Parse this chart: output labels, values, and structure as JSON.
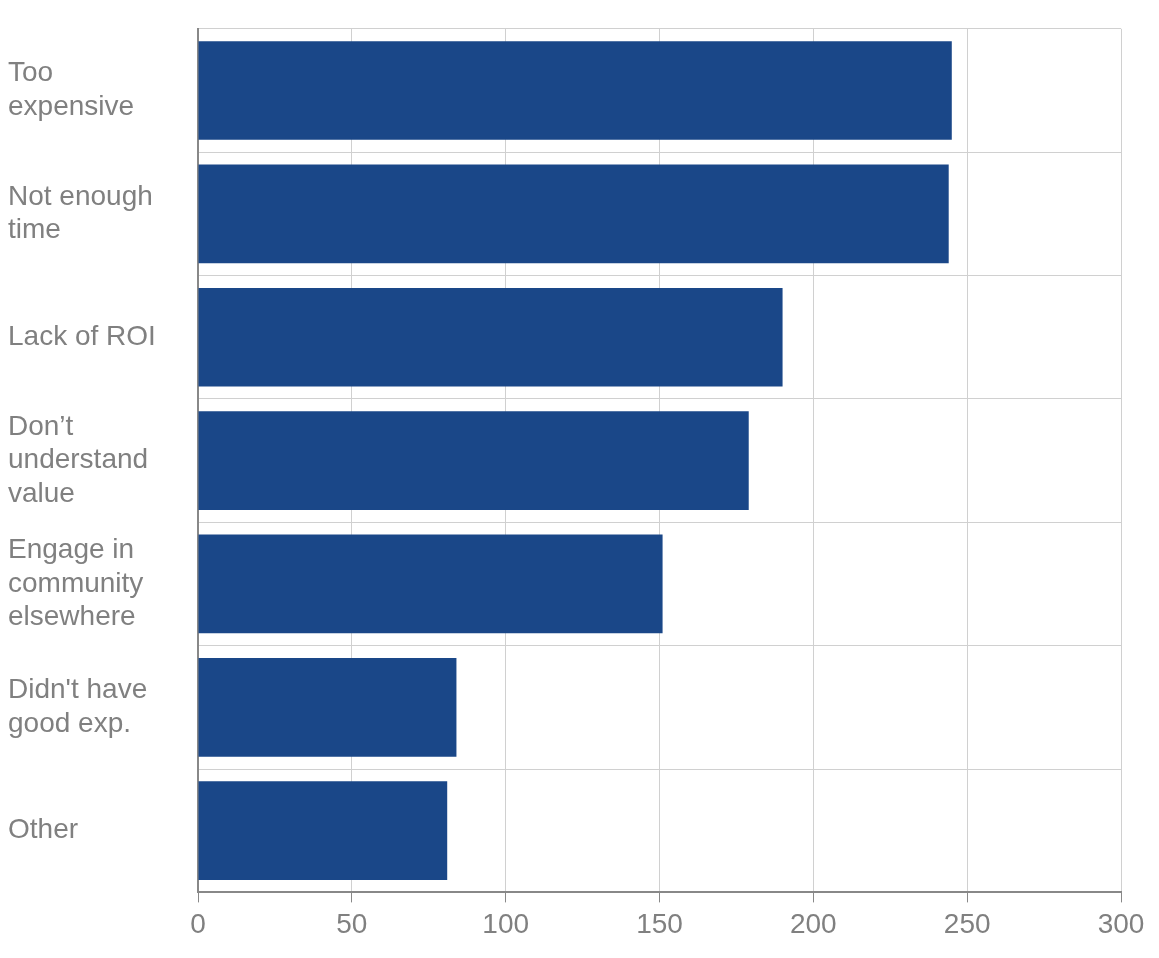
{
  "chart_data": {
    "type": "bar",
    "orientation": "horizontal",
    "categories": [
      "Too expensive",
      "Not enough time",
      "Lack of ROI",
      "Don’t understand value",
      "Engage in community elsewhere",
      "Didn't have good exp.",
      "Other"
    ],
    "values": [
      245,
      244,
      190,
      179,
      151,
      84,
      81
    ],
    "color": "#1a4788",
    "xlim": [
      0,
      300
    ],
    "xticks": [
      0,
      50,
      100,
      150,
      200,
      250,
      300
    ],
    "grid": true
  }
}
